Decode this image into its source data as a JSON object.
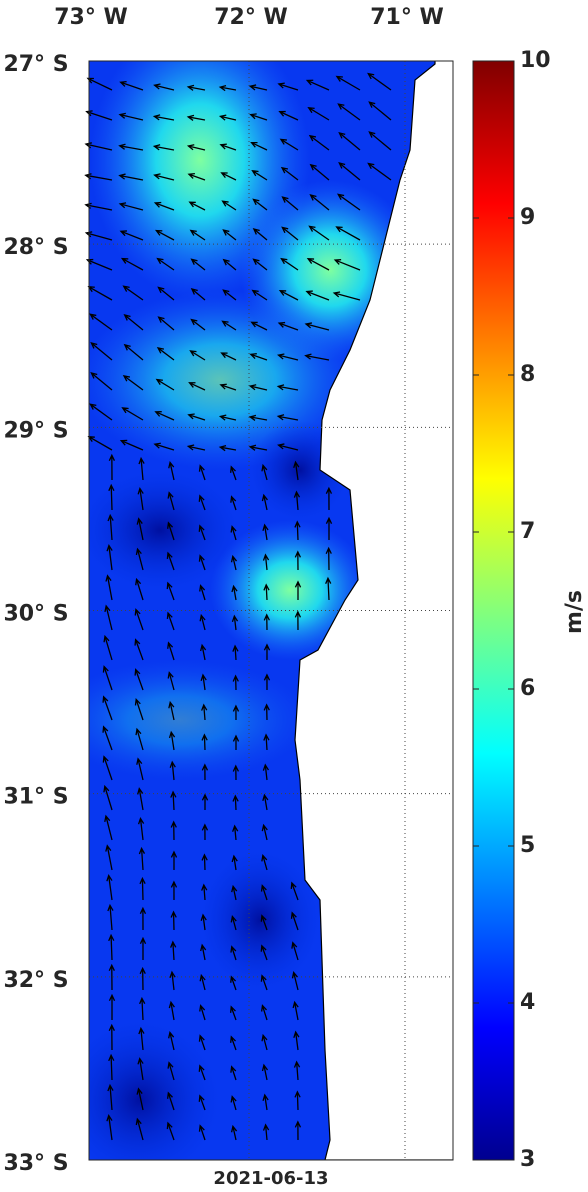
{
  "map": {
    "lon_labels": [
      "73° W",
      "72° W",
      "71° W"
    ],
    "lat_labels": [
      "27° S",
      "28° S",
      "29° S",
      "30° S",
      "31° S",
      "32° S",
      "33° S"
    ],
    "colorbar": {
      "label": "m/s",
      "range": [
        3,
        10
      ],
      "ticks": [
        3,
        4,
        5,
        6,
        7,
        8,
        9,
        10
      ]
    },
    "date": "2021-06-13"
  }
}
